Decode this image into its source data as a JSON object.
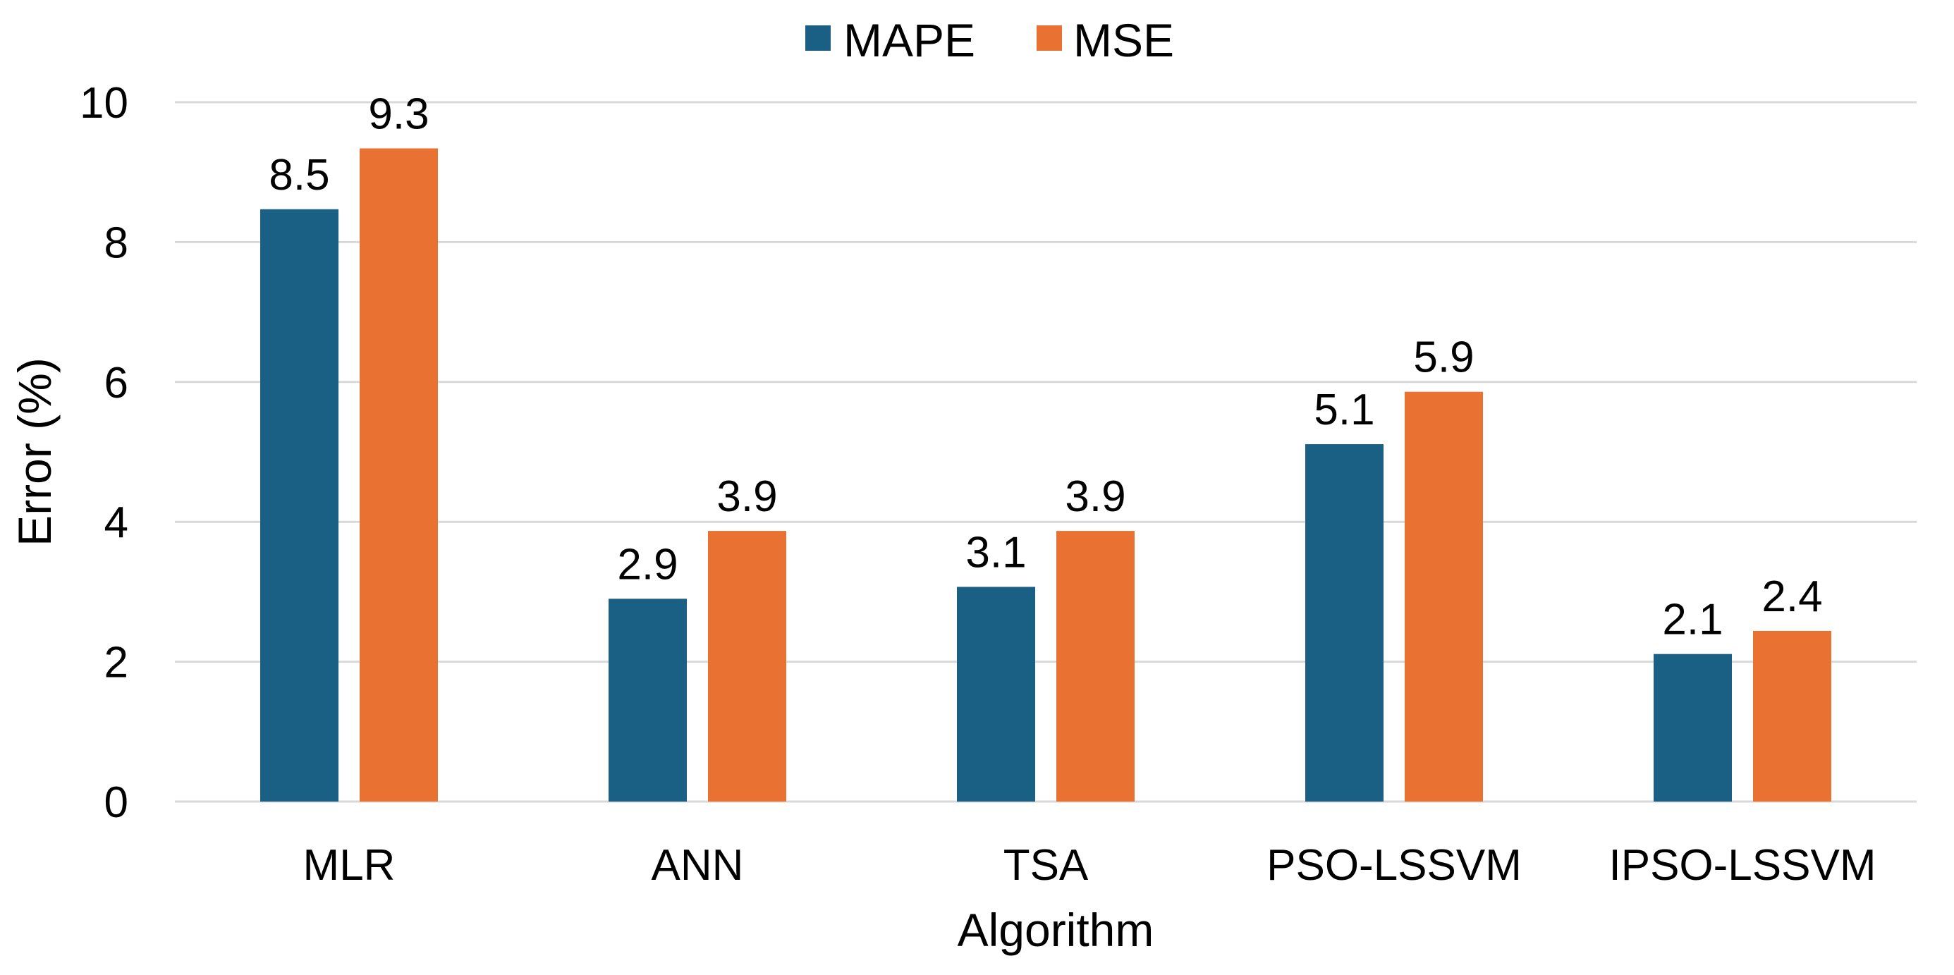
{
  "chart_data": {
    "type": "bar",
    "title": "",
    "xlabel": "Algorithm",
    "ylabel": "Error (%)",
    "ylim": [
      0,
      10
    ],
    "yticks": [
      0,
      2,
      4,
      6,
      8,
      10
    ],
    "grid": true,
    "legend_position": "top-center",
    "categories": [
      "MLR",
      "ANN",
      "TSA",
      "PSO-LSSVM",
      "IPSO-LSSVM"
    ],
    "series": [
      {
        "name": "MAPE",
        "color": "#1a5f84",
        "values": [
          8.47,
          2.9,
          3.07,
          5.11,
          2.11
        ],
        "labels": [
          "8.5",
          "2.9",
          "3.1",
          "5.1",
          "2.1"
        ]
      },
      {
        "name": "MSE",
        "color": "#e97132",
        "values": [
          9.34,
          3.87,
          3.87,
          5.86,
          2.44
        ],
        "labels": [
          "9.3",
          "3.9",
          "3.9",
          "5.9",
          "2.4"
        ]
      }
    ]
  }
}
